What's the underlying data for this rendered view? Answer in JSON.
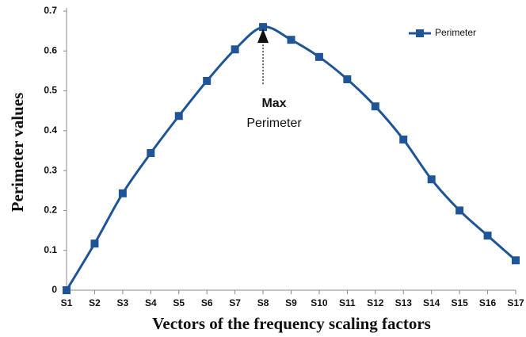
{
  "chart_data": {
    "type": "line",
    "xlabel": "Vectors of the frequency scaling factors",
    "ylabel": "Perimeter values",
    "categories": [
      "S1",
      "S2",
      "S3",
      "S4",
      "S5",
      "S6",
      "S7",
      "S8",
      "S9",
      "S10",
      "S11",
      "S12",
      "S13",
      "S14",
      "S15",
      "S16",
      "S17"
    ],
    "series": [
      {
        "name": "Perimeter",
        "color": "#1f5597",
        "values": [
          0,
          0.117,
          0.243,
          0.344,
          0.437,
          0.525,
          0.604,
          0.66,
          0.628,
          0.585,
          0.529,
          0.461,
          0.378,
          0.278,
          0.2,
          0.137,
          0.075
        ]
      }
    ],
    "ylim": [
      0,
      0.7
    ],
    "yticks": [
      0,
      0.1,
      0.2,
      0.3,
      0.4,
      0.5,
      0.6,
      0.7
    ],
    "annotation": [
      "Max",
      "Perimeter"
    ],
    "legend": "top-right",
    "grid": false
  }
}
